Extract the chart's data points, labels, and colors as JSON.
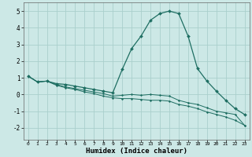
{
  "xlabel": "Humidex (Indice chaleur)",
  "ylabel": "",
  "xlim": [
    -0.5,
    23.5
  ],
  "ylim": [
    -2.7,
    5.5
  ],
  "xticks": [
    0,
    1,
    2,
    3,
    4,
    5,
    6,
    7,
    8,
    9,
    10,
    11,
    12,
    13,
    14,
    15,
    16,
    17,
    18,
    19,
    20,
    21,
    22,
    23
  ],
  "yticks": [
    -2,
    -1,
    0,
    1,
    2,
    3,
    4,
    5
  ],
  "bg_color": "#cce8e6",
  "grid_color": "#aacfcc",
  "line_color": "#1e6e62",
  "curve1_x": [
    0,
    1,
    2,
    3,
    4,
    5,
    6,
    7,
    8,
    9,
    10,
    11,
    12,
    13,
    14,
    15,
    16,
    17,
    18,
    19,
    20,
    21,
    22,
    23
  ],
  "curve1_y": [
    1.1,
    0.75,
    0.8,
    0.65,
    0.6,
    0.5,
    0.4,
    0.3,
    0.2,
    0.1,
    1.5,
    2.75,
    3.5,
    4.45,
    4.85,
    5.0,
    4.85,
    3.5,
    1.55,
    0.8,
    0.2,
    -0.35,
    -0.85,
    -1.2
  ],
  "curve2_x": [
    0,
    1,
    2,
    3,
    4,
    5,
    6,
    7,
    8,
    9,
    10,
    11,
    12,
    13,
    14,
    15,
    16,
    17,
    18,
    19,
    20,
    21,
    22,
    23
  ],
  "curve2_y": [
    1.1,
    0.75,
    0.8,
    0.6,
    0.45,
    0.35,
    0.25,
    0.15,
    0.05,
    -0.1,
    -0.05,
    0.0,
    -0.05,
    0.0,
    -0.05,
    -0.1,
    -0.35,
    -0.5,
    -0.6,
    -0.8,
    -1.0,
    -1.1,
    -1.2,
    -1.85
  ],
  "curve3_x": [
    0,
    1,
    2,
    3,
    4,
    5,
    6,
    7,
    8,
    9,
    10,
    11,
    12,
    13,
    14,
    15,
    16,
    17,
    18,
    19,
    20,
    21,
    22,
    23
  ],
  "curve3_y": [
    1.1,
    0.75,
    0.8,
    0.55,
    0.4,
    0.3,
    0.15,
    0.05,
    -0.1,
    -0.2,
    -0.25,
    -0.25,
    -0.3,
    -0.35,
    -0.35,
    -0.4,
    -0.6,
    -0.7,
    -0.85,
    -1.05,
    -1.2,
    -1.35,
    -1.55,
    -1.85
  ]
}
